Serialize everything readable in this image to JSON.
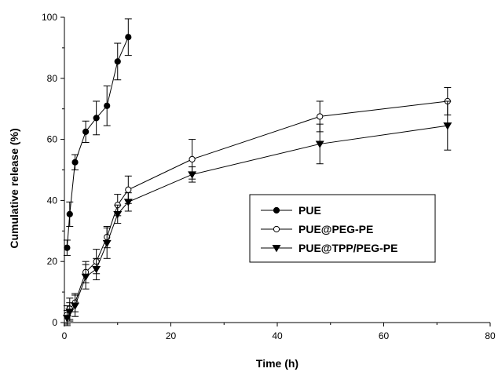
{
  "chart_data": {
    "type": "line",
    "xlabel": "Time (h)",
    "ylabel": "Cumulative release (%)",
    "xlim": [
      0,
      80
    ],
    "ylim": [
      0,
      100
    ],
    "xticks": [
      0,
      20,
      40,
      60,
      80
    ],
    "yticks": [
      0,
      20,
      40,
      60,
      80,
      100
    ],
    "grid": false,
    "legend_position": "center-right",
    "series": [
      {
        "name": "PUE",
        "marker": "filled-circle",
        "x": [
          0.5,
          1,
          2,
          4,
          6,
          8,
          10,
          12
        ],
        "y": [
          24.5,
          35.5,
          52.5,
          62.5,
          67,
          71,
          85.5,
          93.5
        ],
        "err": [
          2.5,
          4,
          2.5,
          3.5,
          5.5,
          6.5,
          6,
          6
        ]
      },
      {
        "name": "PUE@PEG-PE",
        "marker": "open-circle",
        "x": [
          0.5,
          1,
          2,
          4,
          6,
          8,
          10,
          12,
          24,
          48,
          72
        ],
        "y": [
          2.5,
          4.5,
          6.5,
          16.5,
          20,
          28,
          38.5,
          43.5,
          53.5,
          67.5,
          72.5
        ],
        "err": [
          3,
          3.5,
          3,
          3.5,
          4,
          3.5,
          3.5,
          4.5,
          6.5,
          5,
          4.5
        ]
      },
      {
        "name": "PUE@TPP/PEG-PE",
        "marker": "filled-triangle-down",
        "x": [
          0.5,
          1,
          2,
          4,
          6,
          8,
          10,
          12,
          24,
          48,
          72
        ],
        "y": [
          1.5,
          3.5,
          5.5,
          15,
          17.5,
          26,
          35.5,
          39.5,
          48.5,
          58.5,
          64.5
        ],
        "err": [
          2.5,
          3,
          3.5,
          4,
          3.5,
          5,
          3,
          3,
          2.5,
          6.5,
          8
        ]
      }
    ]
  }
}
